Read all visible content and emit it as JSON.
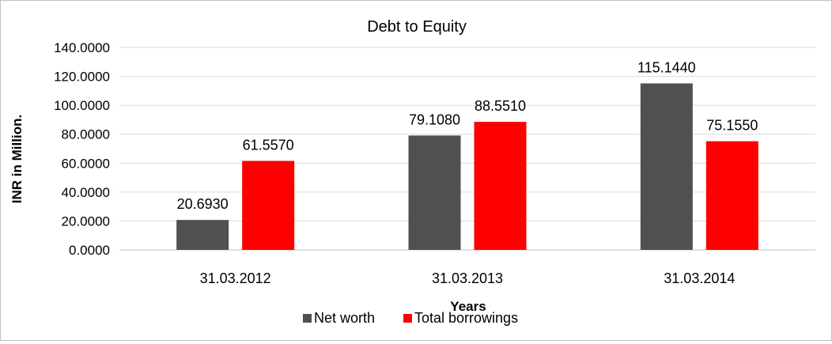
{
  "chart_data": {
    "type": "bar",
    "title": "Debt to Equity",
    "xlabel": "Years",
    "ylabel": "INR in Million.",
    "categories": [
      "31.03.2012",
      "31.03.2013",
      "31.03.2014"
    ],
    "series": [
      {
        "name": "Net worth",
        "color": "#505050",
        "values": [
          20.693,
          79.108,
          115.144
        ],
        "labels": [
          "20.6930",
          "79.1080",
          "115.1440"
        ]
      },
      {
        "name": "Total borrowings",
        "color": "#ff0000",
        "values": [
          61.557,
          88.551,
          75.155
        ],
        "labels": [
          "61.5570",
          "88.5510",
          "75.1550"
        ]
      }
    ],
    "ylim": [
      0,
      140
    ],
    "yticks": [
      0,
      20,
      40,
      60,
      80,
      100,
      120,
      140
    ],
    "ytick_labels": [
      "0.0000",
      "20.0000",
      "40.0000",
      "60.0000",
      "80.0000",
      "100.0000",
      "120.0000",
      "140.0000"
    ],
    "grid": true,
    "legend_position": "bottom"
  }
}
